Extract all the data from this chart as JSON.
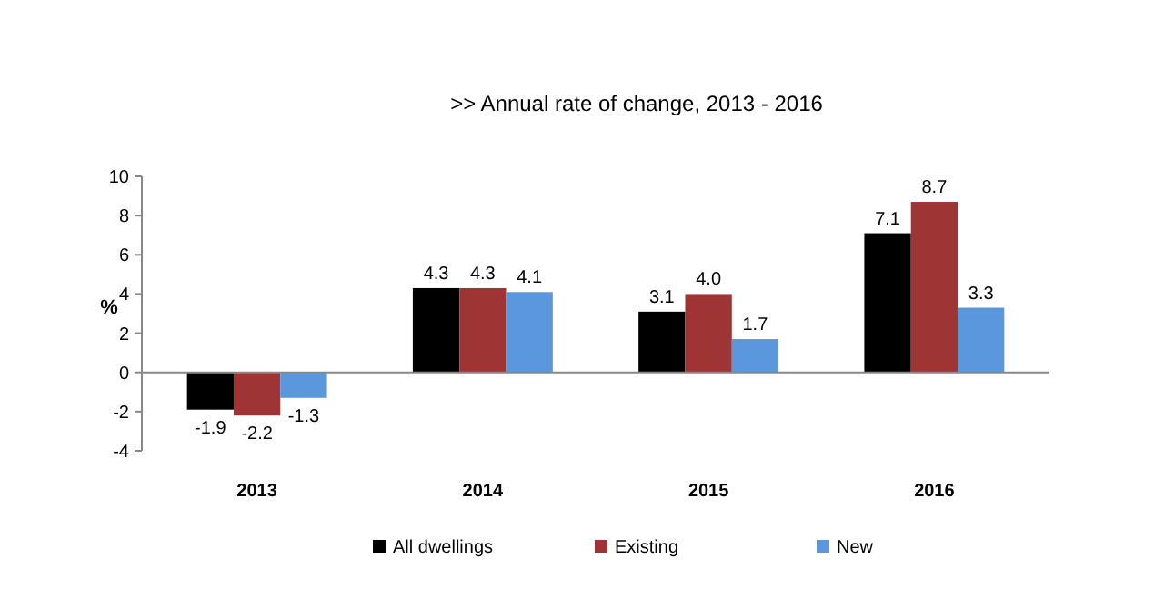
{
  "chart_data": {
    "type": "bar",
    "title": ">>  Annual rate of change, 2013 - 2016",
    "ylabel": "%",
    "categories": [
      "2013",
      "2014",
      "2015",
      "2016"
    ],
    "series": [
      {
        "name": "All dwellings",
        "color": "#000000",
        "values": [
          -1.9,
          4.3,
          3.1,
          7.1
        ],
        "value_labels": [
          "-1.9",
          "4.3",
          "3.1",
          "7.1"
        ]
      },
      {
        "name": "Existing",
        "color": "#9e3434",
        "values": [
          -2.2,
          4.3,
          4.0,
          8.7
        ],
        "value_labels": [
          "-2.2",
          "4.3",
          "4.0",
          "8.7"
        ]
      },
      {
        "name": "New",
        "color": "#5a97dc",
        "values": [
          -1.3,
          4.1,
          1.7,
          3.3
        ],
        "value_labels": [
          "-1.3",
          "4.1",
          "1.7",
          "3.3"
        ]
      }
    ],
    "ylim": [
      -4,
      10
    ],
    "yticks": [
      -4,
      -2,
      0,
      2,
      4,
      6,
      8,
      10
    ],
    "legend": "bottom"
  }
}
